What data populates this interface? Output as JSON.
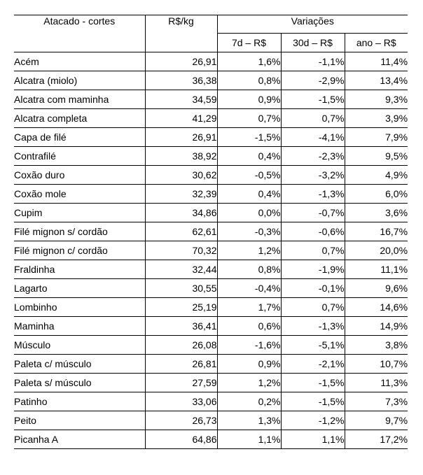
{
  "headers": {
    "corte": "Atacado - cortes",
    "preco": "R$/kg",
    "variacoes": "Variações",
    "v7d": "7d – R$",
    "v30d": "30d – R$",
    "ano": "ano – R$"
  },
  "rows": [
    {
      "corte": "Acém",
      "preco": "26,91",
      "v7d": "1,6%",
      "v30d": "-1,1%",
      "ano": "11,4%"
    },
    {
      "corte": "Alcatra (miolo)",
      "preco": "36,38",
      "v7d": "0,8%",
      "v30d": "-2,9%",
      "ano": "13,4%"
    },
    {
      "corte": "Alcatra com maminha",
      "preco": "34,59",
      "v7d": "0,9%",
      "v30d": "-1,5%",
      "ano": "9,3%"
    },
    {
      "corte": "Alcatra completa",
      "preco": "41,29",
      "v7d": "0,7%",
      "v30d": "0,7%",
      "ano": "3,9%"
    },
    {
      "corte": "Capa de filé",
      "preco": "26,91",
      "v7d": "-1,5%",
      "v30d": "-4,1%",
      "ano": "7,9%"
    },
    {
      "corte": "Contrafilé",
      "preco": "38,92",
      "v7d": "0,4%",
      "v30d": "-2,3%",
      "ano": "9,5%"
    },
    {
      "corte": "Coxão duro",
      "preco": "30,62",
      "v7d": "-0,5%",
      "v30d": "-3,2%",
      "ano": "4,9%"
    },
    {
      "corte": "Coxão mole",
      "preco": "32,39",
      "v7d": "0,4%",
      "v30d": "-1,3%",
      "ano": "6,0%"
    },
    {
      "corte": "Cupim",
      "preco": "34,86",
      "v7d": "0,0%",
      "v30d": "-0,7%",
      "ano": "3,6%"
    },
    {
      "corte": "Filé mignon s/ cordão",
      "preco": "62,61",
      "v7d": "-0,3%",
      "v30d": "-0,6%",
      "ano": "16,7%"
    },
    {
      "corte": "Filé mignon c/ cordão",
      "preco": "70,32",
      "v7d": "1,2%",
      "v30d": "0,7%",
      "ano": "20,0%"
    },
    {
      "corte": "Fraldinha",
      "preco": "32,44",
      "v7d": "0,8%",
      "v30d": "-1,9%",
      "ano": "11,1%"
    },
    {
      "corte": "Lagarto",
      "preco": "30,55",
      "v7d": "-0,4%",
      "v30d": "-0,1%",
      "ano": "9,6%"
    },
    {
      "corte": "Lombinho",
      "preco": "25,19",
      "v7d": "1,7%",
      "v30d": "0,7%",
      "ano": "14,6%"
    },
    {
      "corte": "Maminha",
      "preco": "36,41",
      "v7d": "0,6%",
      "v30d": "-1,3%",
      "ano": "14,9%"
    },
    {
      "corte": "Músculo",
      "preco": "26,08",
      "v7d": "-1,6%",
      "v30d": "-5,1%",
      "ano": "3,8%"
    },
    {
      "corte": "Paleta c/ músculo",
      "preco": "26,81",
      "v7d": "0,9%",
      "v30d": "-2,1%",
      "ano": "10,7%"
    },
    {
      "corte": "Paleta s/ músculo",
      "preco": "27,59",
      "v7d": "1,2%",
      "v30d": "-1,5%",
      "ano": "11,3%"
    },
    {
      "corte": "Patinho",
      "preco": "33,06",
      "v7d": "0,2%",
      "v30d": "-1,5%",
      "ano": "7,3%"
    },
    {
      "corte": "Peito",
      "preco": "26,73",
      "v7d": "1,3%",
      "v30d": "-1,2%",
      "ano": "9,7%"
    },
    {
      "corte": "Picanha A",
      "preco": "64,86",
      "v7d": "1,1%",
      "v30d": "1,1%",
      "ano": "17,2%"
    }
  ]
}
